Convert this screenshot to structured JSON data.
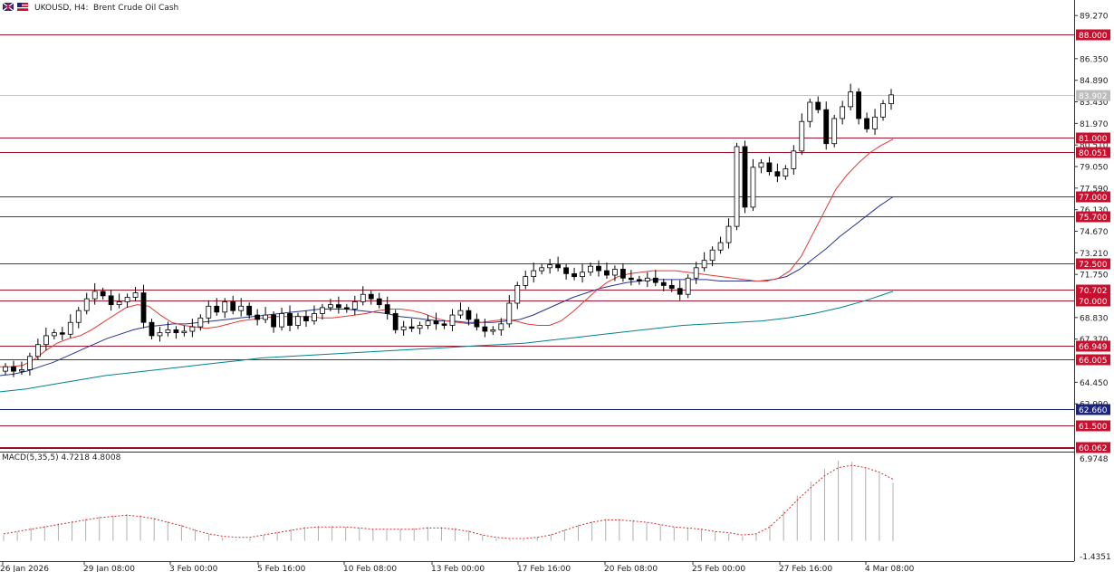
{
  "header": {
    "symbol": "UKOUSD, H4:",
    "instrument": "Brent Crude Oil Cash"
  },
  "colors": {
    "level_line": "#a01830",
    "level_tag": "#c8102e",
    "blue_tag": "#1a237e",
    "ema_fast": "#e53935",
    "ema_mid": "#283593",
    "ema_slow": "#00838f",
    "macd_hist": "#b0b0b0",
    "macd_signal": "#d32f2f"
  },
  "chart_data": [
    {
      "type": "candlestick",
      "title": "UKOUSD, H4: Brent Crude Oil Cash",
      "yaxis_ticks": [
        "89.270",
        "86.350",
        "84.890",
        "83.430",
        "81.970",
        "80.510",
        "79.050",
        "77.590",
        "76.130",
        "74.670",
        "73.210",
        "71.750",
        "68.830",
        "67.370",
        "64.450",
        "62.990"
      ],
      "ylim": [
        60.06,
        90.2
      ],
      "current_price": "83.902",
      "xaxis_ticks": [
        "26 Jan 2026",
        "29 Jan 08:00",
        "3 Feb 00:00",
        "5 Feb 16:00",
        "10 Feb 08:00",
        "13 Feb 00:00",
        "17 Feb 16:00",
        "20 Feb 08:00",
        "25 Feb 00:00",
        "27 Feb 16:00",
        "4 Mar 08:00"
      ],
      "levels": [
        {
          "value": 88.0,
          "label": "88.000",
          "style": "red"
        },
        {
          "value": 81.0,
          "label": "81.000",
          "style": "red"
        },
        {
          "value": 80.051,
          "label": "80.051",
          "style": "red"
        },
        {
          "value": 77.0,
          "label": "77.000",
          "style": "red"
        },
        {
          "value": 75.7,
          "label": "75.700",
          "style": "red"
        },
        {
          "value": 72.5,
          "label": "72.500",
          "style": "red"
        },
        {
          "value": 70.702,
          "label": "70.702",
          "style": "red"
        },
        {
          "value": 70.0,
          "label": "70.000",
          "style": "red"
        },
        {
          "value": 66.949,
          "label": "66.949",
          "style": "red"
        },
        {
          "value": 66.005,
          "label": "66.005",
          "style": "red"
        },
        {
          "value": 62.66,
          "label": "62.660",
          "style": "blue"
        },
        {
          "value": 61.5,
          "label": "61.500",
          "style": "red"
        },
        {
          "value": 60.062,
          "label": "60.062",
          "style": "red"
        }
      ],
      "price_path": [
        65.5,
        65.2,
        65.3,
        66.2,
        67.0,
        67.6,
        67.8,
        67.7,
        68.5,
        69.3,
        70.1,
        70.6,
        70.3,
        69.7,
        69.9,
        70.2,
        70.5,
        68.5,
        67.6,
        67.8,
        68.0,
        67.8,
        67.9,
        68.2,
        68.8,
        69.6,
        69.2,
        69.9,
        69.3,
        69.6,
        69.0,
        68.7,
        69.0,
        68.2,
        69.1,
        68.3,
        68.9,
        68.6,
        69.1,
        69.5,
        69.7,
        69.5,
        69.4,
        69.9,
        70.4,
        70.1,
        69.7,
        69.1,
        68.0,
        68.2,
        68.1,
        68.3,
        68.6,
        68.4,
        68.3,
        69.0,
        69.3,
        68.7,
        68.2,
        67.9,
        68.0,
        68.4,
        69.8,
        71.0,
        71.6,
        72.0,
        72.2,
        72.4,
        72.2,
        71.8,
        71.6,
        71.9,
        72.3,
        72.0,
        71.7,
        72.1,
        71.5,
        71.4,
        71.3,
        71.5,
        71.2,
        71.0,
        70.8,
        70.4,
        71.5,
        72.2,
        72.7,
        73.4,
        73.9,
        75.0,
        80.4,
        76.3,
        79.0,
        79.3,
        78.7,
        78.4,
        78.9,
        80.1,
        82.1,
        83.4,
        82.9,
        80.6,
        82.3,
        83.1,
        84.1,
        82.3,
        81.6,
        82.4,
        83.3,
        83.9
      ],
      "ema_fast": [
        65.5,
        65.5,
        65.6,
        66.0,
        66.6,
        67.1,
        67.4,
        67.6,
        68.0,
        68.5,
        69.0,
        69.5,
        69.7,
        69.6,
        69.0,
        68.5,
        68.3,
        68.2,
        68.1,
        68.2,
        68.4,
        68.6,
        68.7,
        68.8,
        68.9,
        68.9,
        68.9,
        68.9,
        68.8,
        68.8,
        68.9,
        69.0,
        69.1,
        69.3,
        69.4,
        69.4,
        69.3,
        69.1,
        68.8,
        68.6,
        68.5,
        68.4,
        68.5,
        68.6,
        68.7,
        68.6,
        68.4,
        68.3,
        68.3,
        68.6,
        69.2,
        69.9,
        70.6,
        71.2,
        71.6,
        71.8,
        71.9,
        72.0,
        72.0,
        72.0,
        71.9,
        71.8,
        71.7,
        71.6,
        71.5,
        71.4,
        71.3,
        71.3,
        71.5,
        72.0,
        73.0,
        74.5,
        76.0,
        77.5,
        78.5,
        79.3,
        80.0,
        80.5,
        80.9
      ],
      "ema_mid": [
        64.9,
        65.0,
        65.2,
        65.5,
        65.8,
        66.2,
        66.6,
        67.0,
        67.4,
        67.7,
        68.0,
        68.2,
        68.3,
        68.4,
        68.4,
        68.5,
        68.6,
        68.7,
        68.8,
        68.9,
        69.0,
        69.1,
        69.2,
        69.3,
        69.4,
        69.4,
        69.4,
        69.3,
        69.2,
        69.1,
        68.9,
        68.8,
        68.7,
        68.6,
        68.6,
        68.5,
        68.5,
        68.5,
        68.6,
        68.7,
        69.0,
        69.4,
        69.8,
        70.2,
        70.5,
        70.8,
        71.0,
        71.2,
        71.3,
        71.4,
        71.4,
        71.4,
        71.4,
        71.4,
        71.3,
        71.3,
        71.3,
        71.3,
        71.4,
        71.6,
        72.1,
        72.8,
        73.5,
        74.3,
        75.0,
        75.7,
        76.4,
        77.0
      ],
      "ema_slow": [
        63.8,
        64.0,
        64.3,
        64.6,
        64.9,
        65.1,
        65.3,
        65.5,
        65.7,
        65.9,
        66.1,
        66.2,
        66.3,
        66.4,
        66.5,
        66.6,
        66.7,
        66.8,
        66.9,
        67.0,
        67.1,
        67.3,
        67.5,
        67.7,
        67.9,
        68.1,
        68.3,
        68.4,
        68.5,
        68.6,
        68.8,
        69.1,
        69.5,
        70.0,
        70.6
      ],
      "macd_label": "MACD(5,35,5) 4.7218 4.8008",
      "macd_ticks": [
        "6.9748",
        "-1.4351"
      ],
      "macd_hist": [
        0.5,
        0.8,
        1.1,
        1.3,
        1.5,
        1.7,
        1.9,
        2.1,
        2.2,
        2.3,
        2.2,
        2.0,
        1.7,
        1.4,
        1.0,
        0.6,
        0.3,
        0.1,
        0.2,
        0.5,
        0.8,
        1.0,
        1.2,
        1.3,
        1.3,
        1.2,
        1.1,
        1.0,
        0.9,
        1.0,
        1.1,
        1.2,
        1.2,
        1.1,
        0.9,
        0.5,
        0.2,
        0.1,
        0.1,
        0.3,
        0.6,
        1.0,
        1.4,
        1.7,
        1.9,
        1.9,
        1.8,
        1.6,
        1.4,
        1.2,
        1.1,
        1.0,
        0.8,
        0.6,
        0.4,
        0.6,
        1.4,
        2.6,
        3.9,
        5.1,
        6.2,
        6.9,
        6.8,
        6.3,
        5.8,
        5.0
      ],
      "macd_signal": [
        0.6,
        0.8,
        1.0,
        1.2,
        1.4,
        1.6,
        1.8,
        2.0,
        2.1,
        2.2,
        2.1,
        1.9,
        1.6,
        1.3,
        0.9,
        0.6,
        0.4,
        0.3,
        0.3,
        0.5,
        0.7,
        0.9,
        1.1,
        1.2,
        1.2,
        1.2,
        1.1,
        1.0,
        1.0,
        1.0,
        1.0,
        1.1,
        1.1,
        1.0,
        0.8,
        0.5,
        0.3,
        0.2,
        0.2,
        0.3,
        0.5,
        0.9,
        1.3,
        1.6,
        1.8,
        1.8,
        1.7,
        1.6,
        1.4,
        1.2,
        1.1,
        1.0,
        0.8,
        0.7,
        0.5,
        0.6,
        1.2,
        2.3,
        3.5,
        4.6,
        5.6,
        6.3,
        6.5,
        6.3,
        5.9,
        5.3
      ]
    }
  ]
}
